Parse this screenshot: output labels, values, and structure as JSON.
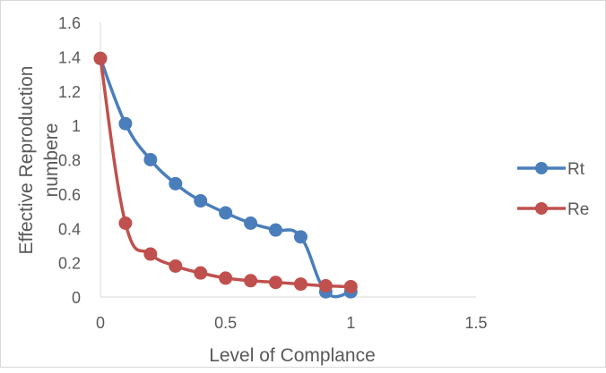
{
  "chart_data": {
    "type": "line",
    "title": "",
    "xlabel": "Level of Complance",
    "ylabel_lines": [
      "Effective Reproduction",
      "numbere"
    ],
    "xlim": [
      0,
      1.5
    ],
    "ylim": [
      0,
      1.6
    ],
    "xticks": [
      0,
      0.5,
      1,
      1.5
    ],
    "yticks": [
      0,
      0.2,
      0.4,
      0.6,
      0.8,
      1,
      1.2,
      1.4,
      1.6
    ],
    "xtick_labels": [
      "0",
      "0.5",
      "1",
      "1.5"
    ],
    "ytick_labels": [
      "0",
      "0.2",
      "0.4",
      "0.6",
      "0.8",
      "1",
      "1.2",
      "1.4",
      "1.6"
    ],
    "grid": false,
    "legend_position": "right",
    "series": [
      {
        "name": "Rt",
        "color": "#4a7ebb",
        "smooth": true,
        "x": [
          0,
          0.1,
          0.2,
          0.3,
          0.4,
          0.5,
          0.6,
          0.7,
          0.8,
          0.9,
          1.0
        ],
        "y": [
          1.39,
          1.01,
          0.8,
          0.66,
          0.56,
          0.49,
          0.43,
          0.39,
          0.35,
          0.03,
          0.03
        ]
      },
      {
        "name": "Re",
        "color": "#c0504d",
        "smooth": true,
        "x": [
          0,
          0.1,
          0.2,
          0.3,
          0.4,
          0.5,
          0.6,
          0.7,
          0.8,
          0.9,
          1.0
        ],
        "y": [
          1.39,
          0.43,
          0.25,
          0.18,
          0.14,
          0.11,
          0.095,
          0.085,
          0.075,
          0.065,
          0.06
        ]
      }
    ]
  }
}
